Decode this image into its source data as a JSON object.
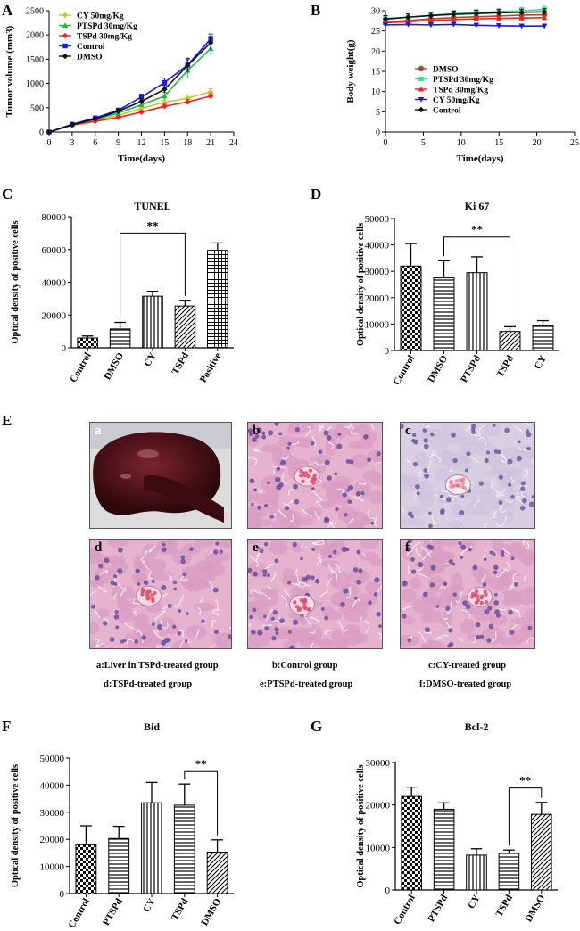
{
  "panels": {
    "A": "A",
    "B": "B",
    "C": "C",
    "D": "D",
    "E": "E",
    "F": "F",
    "G": "G"
  },
  "chart_data": [
    {
      "id": "A",
      "type": "line",
      "title": "",
      "xlabel": "Time(days)",
      "ylabel": "Tumor volume (mm3)",
      "xlim": [
        0,
        24
      ],
      "ylim": [
        0,
        2500
      ],
      "xticks": [
        0,
        3,
        6,
        9,
        12,
        15,
        18,
        21,
        24
      ],
      "yticks": [
        0,
        500,
        1000,
        1500,
        2000,
        2500
      ],
      "legend_position": "top-left",
      "x": [
        0,
        3,
        6,
        9,
        12,
        15,
        18,
        21
      ],
      "series": [
        {
          "name": "CY 50mg/Kg",
          "color": "#c8c82a",
          "marker": "diamond",
          "values": [
            0,
            150,
            240,
            340,
            490,
            610,
            700,
            830
          ],
          "errors": [
            0,
            20,
            25,
            30,
            40,
            50,
            60,
            60
          ]
        },
        {
          "name": "PTSPd 30mg/Kg",
          "color": "#22b14c",
          "marker": "triangle",
          "values": [
            0,
            150,
            260,
            390,
            560,
            740,
            1270,
            1720
          ],
          "errors": [
            0,
            20,
            25,
            30,
            50,
            80,
            150,
            150
          ]
        },
        {
          "name": "TSPd 30mg/Kg",
          "color": "#ee2222",
          "marker": "diamond",
          "values": [
            0,
            140,
            220,
            300,
            410,
            530,
            620,
            740
          ],
          "errors": [
            0,
            15,
            20,
            25,
            30,
            40,
            50,
            50
          ]
        },
        {
          "name": "Control",
          "color": "#1a1ae6",
          "marker": "square",
          "values": [
            0,
            160,
            290,
            450,
            720,
            1020,
            1380,
            1920
          ],
          "errors": [
            0,
            20,
            30,
            40,
            60,
            90,
            110,
            100
          ]
        },
        {
          "name": "DMSO",
          "color": "#111111",
          "marker": "diamond",
          "values": [
            0,
            150,
            270,
            430,
            630,
            880,
            1370,
            1840
          ],
          "errors": [
            0,
            20,
            30,
            40,
            60,
            80,
            150,
            130
          ]
        }
      ]
    },
    {
      "id": "B",
      "type": "line",
      "title": "",
      "xlabel": "Time(days)",
      "ylabel": "Body weight(g)",
      "xlim": [
        0,
        25
      ],
      "ylim": [
        0,
        30
      ],
      "xticks": [
        0,
        5,
        10,
        15,
        20,
        25
      ],
      "yticks": [
        0,
        5,
        10,
        15,
        20,
        25,
        30
      ],
      "legend_position": "center-left",
      "x": [
        0,
        3,
        6,
        9,
        12,
        15,
        18,
        21
      ],
      "series": [
        {
          "name": "DMSO",
          "color": "#a0522d",
          "marker": "circle",
          "values": [
            27.2,
            27.6,
            28.0,
            28.3,
            28.5,
            28.7,
            28.9,
            29.0
          ],
          "errors": [
            0.8,
            0.8,
            0.8,
            0.8,
            0.8,
            0.8,
            0.8,
            0.8
          ]
        },
        {
          "name": "PTSPd 30mg/Kg",
          "color": "#40d9a0",
          "marker": "square",
          "values": [
            27.8,
            28.4,
            28.9,
            29.3,
            29.5,
            29.8,
            30.0,
            30.3
          ],
          "errors": [
            0.8,
            0.8,
            0.8,
            0.8,
            0.8,
            0.8,
            0.8,
            0.8
          ]
        },
        {
          "name": "TSPd 30mg/Kg",
          "color": "#ee2222",
          "marker": "triangle",
          "values": [
            27.0,
            27.3,
            27.6,
            27.8,
            28.0,
            28.1,
            28.2,
            28.3
          ],
          "errors": [
            0.6,
            0.6,
            0.6,
            0.6,
            0.6,
            0.6,
            0.6,
            0.6
          ]
        },
        {
          "name": "CY 50mg/Kg",
          "color": "#1a1ae6",
          "marker": "triangle-down",
          "values": [
            26.5,
            26.6,
            26.5,
            26.6,
            26.4,
            26.3,
            26.2,
            26.2
          ],
          "errors": [
            0.5,
            0.5,
            0.5,
            0.5,
            0.5,
            0.5,
            0.5,
            0.5
          ]
        },
        {
          "name": "Control",
          "color": "#111111",
          "marker": "diamond",
          "values": [
            28.0,
            28.4,
            28.8,
            29.1,
            29.3,
            29.5,
            29.6,
            29.7
          ],
          "errors": [
            0.8,
            0.8,
            0.8,
            0.8,
            0.8,
            0.8,
            0.8,
            0.8
          ]
        }
      ]
    },
    {
      "id": "C",
      "type": "bar",
      "title": "TUNEL",
      "xlabel": "",
      "ylabel": "Optical density of positive cells",
      "ylim": [
        0,
        80000
      ],
      "yticks": [
        0,
        20000,
        40000,
        60000,
        80000
      ],
      "categories": [
        "Control",
        "DMSO",
        "CY",
        "TSPd",
        "Positive"
      ],
      "values": [
        6000,
        11500,
        31500,
        25500,
        59500
      ],
      "errors": [
        1200,
        4000,
        3000,
        3500,
        4500
      ],
      "patterns": [
        "check",
        "hstripe",
        "vstripe",
        "dstripe",
        "grid"
      ],
      "significance": {
        "from": 1,
        "to": 3,
        "label": "**",
        "level": 70000
      }
    },
    {
      "id": "D",
      "type": "bar",
      "title": "Ki 67",
      "xlabel": "",
      "ylabel": "Optical density of positive cells",
      "ylim": [
        0,
        50000
      ],
      "yticks": [
        0,
        10000,
        20000,
        30000,
        40000,
        50000
      ],
      "categories": [
        "Control",
        "DMSO",
        "PTSPd",
        "TSPd",
        "CY"
      ],
      "values": [
        32000,
        27500,
        29500,
        7200,
        9500
      ],
      "errors": [
        8500,
        6500,
        6000,
        1800,
        1800
      ],
      "patterns": [
        "check",
        "hstripe",
        "vstripe",
        "dstripe",
        "hstripe"
      ],
      "significance": {
        "from": 1,
        "to": 3,
        "label": "**",
        "level": 43000
      }
    },
    {
      "id": "F",
      "type": "bar",
      "title": "Bid",
      "xlabel": "",
      "ylabel": "Optical density of positive cells",
      "ylim": [
        0,
        50000
      ],
      "yticks": [
        0,
        10000,
        20000,
        30000,
        40000,
        50000
      ],
      "categories": [
        "Control",
        "PTSPd",
        "CY",
        "TSPd",
        "DMSO"
      ],
      "values": [
        18000,
        20300,
        33500,
        32600,
        15300
      ],
      "errors": [
        7000,
        4500,
        7500,
        7800,
        4500
      ],
      "patterns": [
        "check",
        "hstripe",
        "vstripe",
        "hstripe",
        "dstripe"
      ],
      "significance": {
        "from": 3,
        "to": 4,
        "label": "**",
        "level": 45000
      }
    },
    {
      "id": "G",
      "type": "bar",
      "title": "Bcl-2",
      "xlabel": "",
      "ylabel": "Optical density of positive cells",
      "ylim": [
        0,
        30000
      ],
      "yticks": [
        0,
        10000,
        20000,
        30000
      ],
      "categories": [
        "Control",
        "PTSPd",
        "CY",
        "TSPd",
        "DMSO"
      ],
      "values": [
        22000,
        19000,
        8200,
        8700,
        17800
      ],
      "errors": [
        2200,
        1500,
        1500,
        700,
        2800
      ],
      "patterns": [
        "check",
        "hstripe",
        "vstripe",
        "hstripe",
        "dstripe"
      ],
      "significance": {
        "from": 3,
        "to": 4,
        "label": "**",
        "level": 24000
      }
    }
  ],
  "histology": {
    "images": [
      {
        "letter": "a",
        "kind": "liver"
      },
      {
        "letter": "b",
        "kind": "stain"
      },
      {
        "letter": "c",
        "kind": "stain-pale"
      },
      {
        "letter": "d",
        "kind": "stain"
      },
      {
        "letter": "e",
        "kind": "stain"
      },
      {
        "letter": "f",
        "kind": "stain"
      }
    ],
    "captions": [
      "a:Liver in TSPd-treated group",
      "b:Control group",
      "c:CY-treated group",
      "d:TSPd-treated group",
      "e:PTSPd-treated group",
      "f:DMSO-treated group"
    ]
  }
}
